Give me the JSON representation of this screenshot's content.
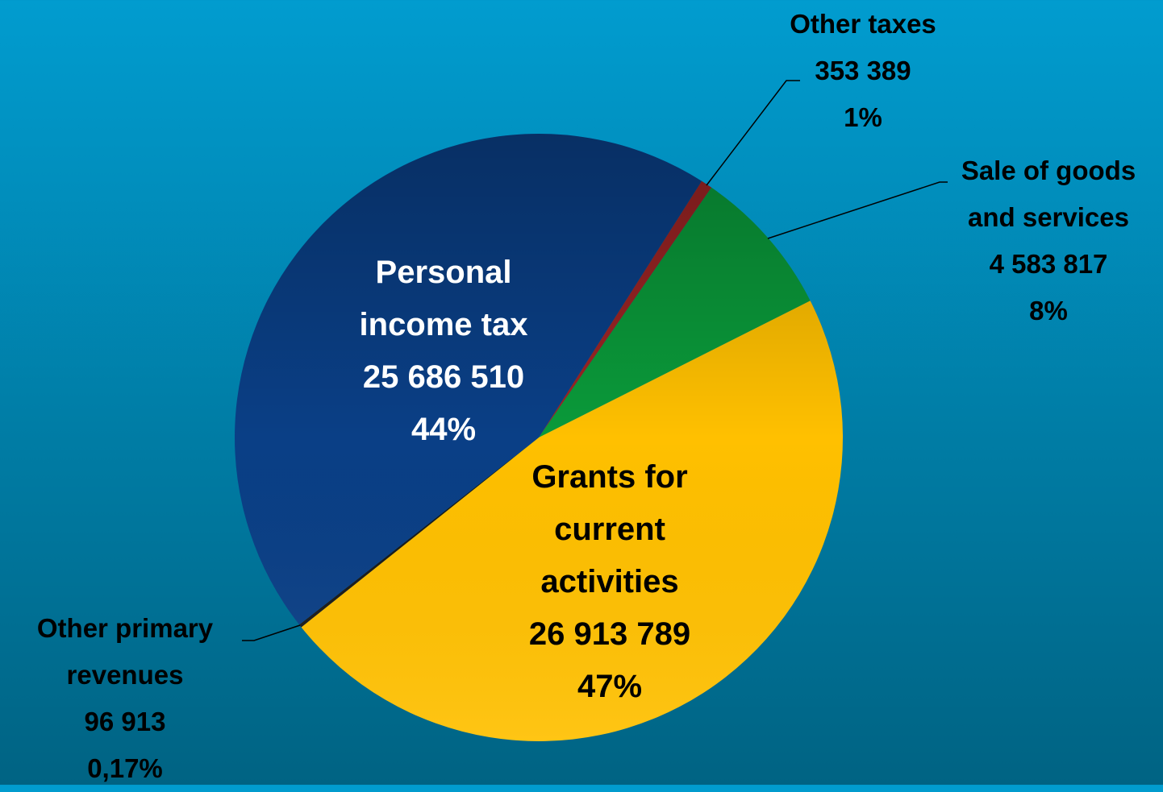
{
  "chart_data": {
    "type": "pie",
    "categories": [
      "Other taxes",
      "Sale of goods and services",
      "Grants for current activities",
      "Other primary revenues",
      "Personal income tax"
    ],
    "values": [
      353389,
      4583817,
      26913789,
      96913,
      25686510
    ],
    "value_labels": [
      "353 389",
      "4 583 817",
      "26 913 789",
      "96 913",
      "25 686 510"
    ],
    "percents": [
      1,
      8,
      47,
      0.17,
      44
    ],
    "percent_labels": [
      "1%",
      "8%",
      "47%",
      "0,17%",
      "44%"
    ],
    "colors": [
      "#9b2424",
      "#0a9a3a",
      "#ffc000",
      "#1a1a1a",
      "#0a3f86"
    ]
  }
}
